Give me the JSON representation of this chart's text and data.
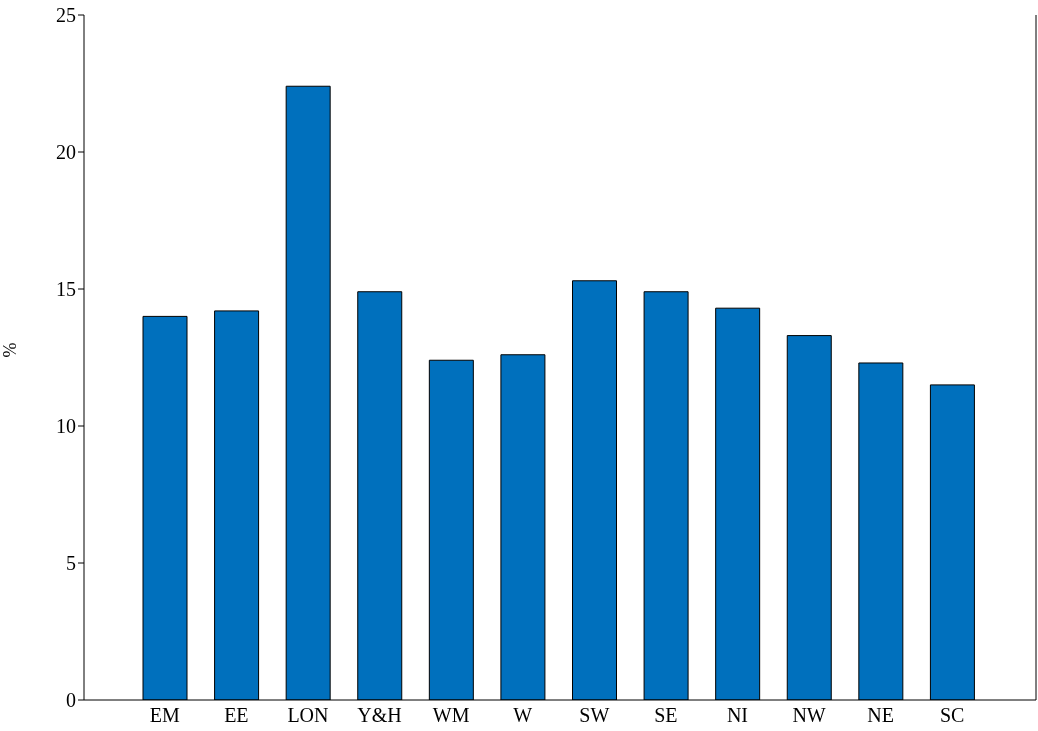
{
  "chart_data": {
    "type": "bar",
    "ylabel": "%",
    "categories": [
      "EM",
      "EE",
      "LON",
      "Y&H",
      "WM",
      "W",
      "SW",
      "SE",
      "NI",
      "NW",
      "NE",
      "SC"
    ],
    "values": [
      14.0,
      14.2,
      22.4,
      14.9,
      12.4,
      12.6,
      15.3,
      14.9,
      14.3,
      13.3,
      12.3,
      11.5
    ],
    "color": "#0070bd",
    "ylim": [
      0,
      25
    ],
    "yticks": [
      0,
      5,
      10,
      15,
      20,
      25
    ],
    "grid": false,
    "legend": false
  }
}
